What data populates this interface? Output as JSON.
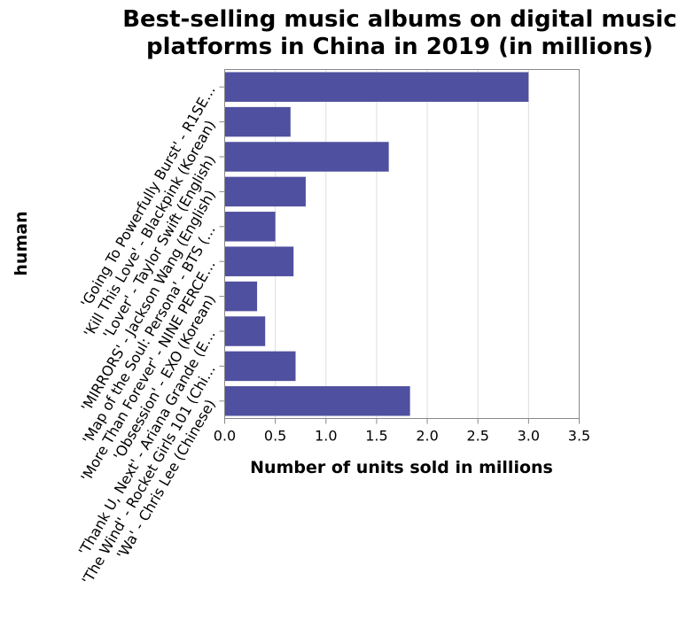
{
  "chart_data": {
    "type": "bar",
    "orientation": "horizontal",
    "title": "Best-selling music albums on digital music platforms in China in 2019 (in millions)",
    "title_lines": [
      "Best-selling music albums on digital music",
      "platforms in China in 2019 (in millions)"
    ],
    "xlabel": "Number of units sold in millions",
    "ylabel": "human",
    "xlim": [
      0,
      3.5
    ],
    "xticks": [
      "0.0",
      "0.5",
      "1.0",
      "1.5",
      "2.0",
      "2.5",
      "3.0",
      "3.5"
    ],
    "categories": [
      "'Going To Powerfully Burst' - R1SE…",
      "'Kill This Love' - Blackpink (Korean)",
      "'Lover' - Taylor Swift (English)",
      "'MIRRORS' - Jackson Wang (English)",
      "'Map of the Soul: Persona' - BTS (…",
      "'More Than Forever' - NINE PERCE…",
      "'Obsession' - EXO (Korean)",
      "'Thank U, Next' - Ariana Grande (E…",
      "'The Wind' - Rocket Girls 101 (Chi…",
      "'Wa' - Chris Lee (Chinese)"
    ],
    "values": [
      3.0,
      0.65,
      1.62,
      0.8,
      0.5,
      0.68,
      0.32,
      0.4,
      0.7,
      1.83
    ],
    "bar_color": "#5050a0",
    "grid": true,
    "legend": "none"
  }
}
